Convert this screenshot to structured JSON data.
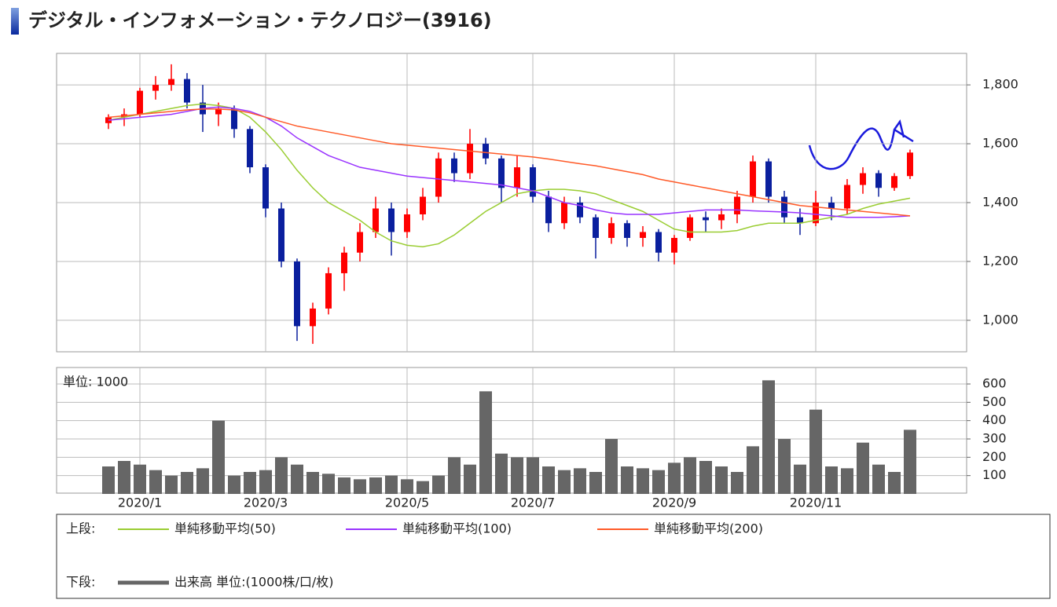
{
  "title": "デジタル・インフォメーション・テクノロジー(3916)",
  "legend": {
    "upper_label": "上段:",
    "lower_label": "下段:"
  },
  "chart_data": [
    {
      "type": "candlestick",
      "ylim": [
        893,
        1907
      ],
      "yticks": [
        {
          "value": 1000,
          "label": "1,000"
        },
        {
          "value": 1200,
          "label": "1,200"
        },
        {
          "value": 1400,
          "label": "1,400"
        },
        {
          "value": 1600,
          "label": "1,600"
        },
        {
          "value": 1800,
          "label": "1,800"
        }
      ],
      "grid": true,
      "up_color": "#ff0000",
      "down_color": "#0a1f9e",
      "ohlc": {
        "open": [
          1670,
          1690,
          1700,
          1780,
          1800,
          1820,
          1740,
          1700,
          1720,
          1650,
          1520,
          1380,
          1200,
          980,
          1040,
          1160,
          1230,
          1300,
          1380,
          1300,
          1360,
          1420,
          1550,
          1500,
          1600,
          1550,
          1450,
          1520,
          1420,
          1330,
          1400,
          1350,
          1280,
          1330,
          1280,
          1300,
          1230,
          1280,
          1350,
          1340,
          1360,
          1420,
          1540,
          1420,
          1350,
          1330,
          1400,
          1380,
          1460,
          1500,
          1450,
          1490
        ],
        "high": [
          1700,
          1720,
          1790,
          1830,
          1870,
          1840,
          1800,
          1740,
          1730,
          1660,
          1530,
          1400,
          1210,
          1060,
          1180,
          1250,
          1330,
          1420,
          1400,
          1380,
          1450,
          1570,
          1570,
          1650,
          1620,
          1560,
          1560,
          1530,
          1440,
          1420,
          1420,
          1360,
          1350,
          1340,
          1320,
          1310,
          1290,
          1360,
          1370,
          1380,
          1440,
          1560,
          1550,
          1440,
          1380,
          1440,
          1420,
          1480,
          1520,
          1510,
          1500,
          1580
        ],
        "low": [
          1650,
          1660,
          1690,
          1750,
          1780,
          1720,
          1640,
          1660,
          1620,
          1500,
          1350,
          1180,
          930,
          920,
          1020,
          1100,
          1200,
          1280,
          1220,
          1280,
          1340,
          1400,
          1470,
          1480,
          1530,
          1400,
          1420,
          1400,
          1300,
          1310,
          1330,
          1210,
          1260,
          1250,
          1250,
          1200,
          1190,
          1270,
          1300,
          1310,
          1330,
          1400,
          1400,
          1330,
          1290,
          1320,
          1340,
          1360,
          1430,
          1420,
          1440,
          1480
        ],
        "close": [
          1690,
          1700,
          1780,
          1800,
          1820,
          1740,
          1700,
          1720,
          1650,
          1520,
          1380,
          1200,
          980,
          1040,
          1160,
          1230,
          1300,
          1380,
          1300,
          1360,
          1420,
          1550,
          1500,
          1600,
          1550,
          1450,
          1520,
          1420,
          1330,
          1400,
          1350,
          1280,
          1330,
          1280,
          1300,
          1230,
          1280,
          1350,
          1340,
          1360,
          1420,
          1540,
          1420,
          1350,
          1330,
          1400,
          1380,
          1460,
          1500,
          1450,
          1490,
          1570
        ]
      },
      "lines": [
        {
          "name": "単純移動平均(50)",
          "color": "#9acd32",
          "values": [
            1680,
            1690,
            1700,
            1710,
            1720,
            1730,
            1735,
            1730,
            1720,
            1690,
            1640,
            1580,
            1510,
            1450,
            1400,
            1370,
            1340,
            1300,
            1270,
            1255,
            1250,
            1260,
            1290,
            1330,
            1370,
            1400,
            1430,
            1440,
            1445,
            1445,
            1440,
            1430,
            1410,
            1390,
            1370,
            1340,
            1310,
            1300,
            1300,
            1300,
            1305,
            1320,
            1330,
            1330,
            1330,
            1340,
            1350,
            1360,
            1380,
            1395,
            1405,
            1415
          ]
        },
        {
          "name": "単純移動平均(100)",
          "color": "#9933ff",
          "values": [
            1680,
            1685,
            1690,
            1695,
            1700,
            1710,
            1720,
            1725,
            1720,
            1710,
            1690,
            1660,
            1620,
            1590,
            1560,
            1540,
            1520,
            1510,
            1500,
            1490,
            1485,
            1480,
            1475,
            1470,
            1465,
            1460,
            1450,
            1440,
            1420,
            1400,
            1390,
            1375,
            1365,
            1360,
            1360,
            1360,
            1365,
            1370,
            1375,
            1375,
            1375,
            1372,
            1370,
            1368,
            1365,
            1360,
            1355,
            1350,
            1350,
            1350,
            1352,
            1355
          ]
        },
        {
          "name": "単純移動平均(200)",
          "color": "#ff5a28",
          "values": [
            1690,
            1695,
            1700,
            1705,
            1710,
            1715,
            1718,
            1718,
            1715,
            1705,
            1690,
            1675,
            1660,
            1650,
            1640,
            1630,
            1620,
            1610,
            1600,
            1595,
            1590,
            1585,
            1580,
            1575,
            1570,
            1565,
            1560,
            1555,
            1548,
            1540,
            1532,
            1525,
            1515,
            1505,
            1495,
            1480,
            1470,
            1460,
            1450,
            1440,
            1430,
            1420,
            1410,
            1400,
            1390,
            1385,
            1380,
            1375,
            1370,
            1365,
            1360,
            1355
          ]
        }
      ]
    },
    {
      "type": "bar",
      "unit_label": "単位: 1000",
      "ylim": [
        0,
        690
      ],
      "yticks": [
        100,
        200,
        300,
        400,
        500,
        600
      ],
      "grid": true,
      "categories": [
        null,
        null,
        "2020/1",
        null,
        null,
        null,
        null,
        null,
        null,
        null,
        "2020/3",
        null,
        null,
        null,
        null,
        null,
        null,
        null,
        null,
        "2020/5",
        null,
        null,
        null,
        null,
        null,
        null,
        null,
        "2020/7",
        null,
        null,
        null,
        null,
        null,
        null,
        null,
        null,
        "2020/9",
        null,
        null,
        null,
        null,
        null,
        null,
        null,
        null,
        "2020/11",
        null,
        null,
        null,
        null,
        null,
        null
      ],
      "series": [
        {
          "name": "出来高 単位:(1000株/口/枚)",
          "color": "#666666",
          "values": [
            150,
            180,
            160,
            130,
            100,
            120,
            140,
            400,
            100,
            120,
            130,
            200,
            160,
            120,
            110,
            90,
            80,
            90,
            100,
            80,
            70,
            100,
            200,
            160,
            560,
            220,
            200,
            200,
            150,
            130,
            140,
            120,
            300,
            150,
            140,
            130,
            170,
            200,
            180,
            150,
            120,
            260,
            620,
            300,
            160,
            460,
            150,
            140,
            280,
            160,
            120,
            350
          ]
        }
      ]
    }
  ]
}
